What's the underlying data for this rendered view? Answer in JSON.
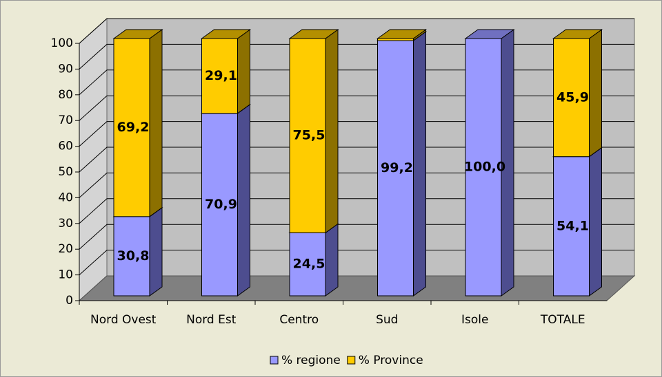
{
  "chart_data": {
    "type": "bar3d_stacked",
    "categories": [
      "Nord Ovest",
      "Nord Est",
      "Centro",
      "Sud",
      "Isole",
      "TOTALE"
    ],
    "series": [
      {
        "name": "% regione",
        "color": "#9999ff",
        "side_color": "#4d4d8f",
        "top_color": "#7070c0",
        "values": [
          30.8,
          70.9,
          24.5,
          99.2,
          100.0,
          54.1
        ],
        "value_labels": [
          "30,8",
          "70,9",
          "24,5",
          "99,2",
          "100,0",
          "54,1"
        ]
      },
      {
        "name": "% Province",
        "color": "#ffcc00",
        "side_color": "#8c7000",
        "top_color": "#b38f00",
        "values": [
          69.2,
          29.1,
          75.5,
          0.8,
          0,
          45.9
        ],
        "value_labels": [
          "69,2",
          "29,1",
          "75,5",
          null,
          null,
          "45,9"
        ]
      }
    ],
    "ylim": [
      0,
      100
    ],
    "yticks": [
      0,
      10,
      20,
      30,
      40,
      50,
      60,
      70,
      80,
      90,
      100
    ],
    "grid": true,
    "legend": "bottom"
  }
}
